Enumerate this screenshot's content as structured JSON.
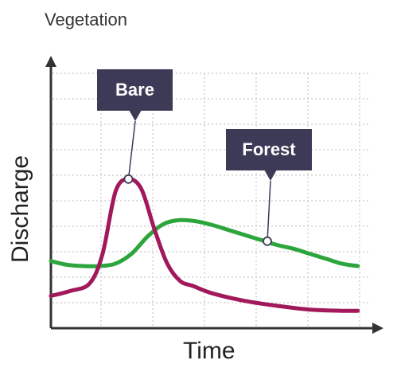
{
  "chart_data": {
    "type": "line",
    "title": "Vegetation",
    "xlabel": "Time",
    "ylabel": "Discharge",
    "grid": true,
    "grid_style": "dotted",
    "xlim": [
      0,
      10
    ],
    "ylim": [
      0,
      10
    ],
    "series": [
      {
        "name": "Bare",
        "color": "#a2195b",
        "x": [
          0,
          0.6,
          1.2,
          1.6,
          2.0,
          2.4,
          2.8,
          3.2,
          3.6,
          4.0,
          4.4,
          5.0,
          6.0,
          7.0,
          8.0,
          9.0,
          9.5
        ],
        "values": [
          1.3,
          1.5,
          1.8,
          3.0,
          5.5,
          6.0,
          5.6,
          4.0,
          2.6,
          1.9,
          1.7,
          1.4,
          1.1,
          0.9,
          0.75,
          0.7,
          0.7
        ]
      },
      {
        "name": "Forest",
        "color": "#2ca63c",
        "x": [
          0,
          0.5,
          1.0,
          1.5,
          2.0,
          2.5,
          3.0,
          3.5,
          4.0,
          4.5,
          5.0,
          5.5,
          6.0,
          6.5,
          7.0,
          7.5,
          8.0,
          8.5,
          9.0,
          9.5
        ],
        "values": [
          2.7,
          2.55,
          2.5,
          2.5,
          2.6,
          3.0,
          3.7,
          4.2,
          4.35,
          4.3,
          4.15,
          3.95,
          3.75,
          3.55,
          3.35,
          3.2,
          3.0,
          2.8,
          2.6,
          2.5
        ]
      }
    ],
    "annotations": [
      {
        "label": "Bare",
        "series": "Bare",
        "x": 2.4,
        "y": 6.0
      },
      {
        "label": "Forest",
        "series": "Forest",
        "x": 6.7,
        "y": 3.5
      }
    ],
    "axis_color": "#333333",
    "grid_color": "#c8c8c8",
    "callout_color": "#3d3a58"
  }
}
